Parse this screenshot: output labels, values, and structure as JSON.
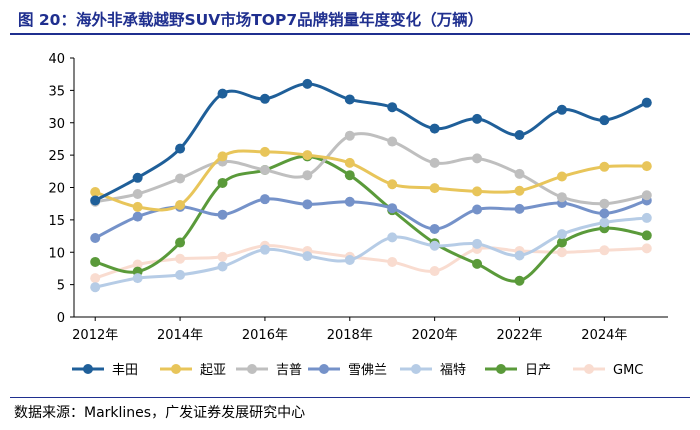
{
  "figure": {
    "title": "图 20：海外非承载越野SUV市场TOP7品牌销量年度变化（万辆）",
    "source": "数据来源：Marklines，广发证券发展研究中心"
  },
  "chart_data": {
    "type": "line",
    "title": "海外非承载越野SUV市场TOP7品牌销量年度变化（万辆）",
    "xlabel": "",
    "ylabel": "",
    "x": [
      2012,
      2013,
      2014,
      2015,
      2016,
      2017,
      2018,
      2019,
      2020,
      2021,
      2022,
      2023,
      2024,
      2025
    ],
    "x_tick_labels": [
      "2012年",
      "2014年",
      "2016年",
      "2018年",
      "2020年",
      "2022年",
      "2024年"
    ],
    "x_tick_values": [
      2012,
      2014,
      2016,
      2018,
      2020,
      2022,
      2024
    ],
    "ylim": [
      0,
      40
    ],
    "y_ticks": [
      0,
      5,
      10,
      15,
      20,
      25,
      30,
      35,
      40
    ],
    "grid": false,
    "legend_position": "bottom",
    "series": [
      {
        "name": "丰田",
        "color": "#1f5f99",
        "values": [
          18.0,
          21.5,
          26.0,
          34.5,
          33.7,
          36.0,
          33.6,
          32.4,
          29.1,
          30.6,
          28.1,
          32.0,
          30.4,
          33.1
        ]
      },
      {
        "name": "起亚",
        "color": "#e8c55a",
        "values": [
          19.3,
          17.0,
          17.3,
          24.8,
          25.5,
          25.0,
          23.8,
          20.5,
          19.9,
          19.4,
          19.5,
          21.7,
          23.2,
          23.3
        ]
      },
      {
        "name": "吉普",
        "color": "#bfbfbf",
        "values": [
          17.8,
          19.0,
          21.4,
          24.0,
          22.7,
          21.9,
          28.0,
          27.1,
          23.8,
          24.5,
          22.1,
          18.5,
          17.5,
          18.8
        ]
      },
      {
        "name": "雪佛兰",
        "color": "#7592c9",
        "values": [
          12.2,
          15.5,
          17.0,
          15.8,
          18.2,
          17.4,
          17.8,
          16.8,
          13.6,
          16.6,
          16.7,
          17.6,
          16.0,
          18.0
        ]
      },
      {
        "name": "福特",
        "color": "#b6cce6",
        "values": [
          4.6,
          6.0,
          6.5,
          7.8,
          10.4,
          9.4,
          8.8,
          12.3,
          11.0,
          11.3,
          9.5,
          12.8,
          14.6,
          15.3
        ]
      },
      {
        "name": "日产",
        "color": "#5a9a3a",
        "values": [
          8.5,
          7.0,
          11.5,
          20.7,
          22.7,
          24.8,
          21.9,
          16.5,
          11.4,
          8.2,
          5.6,
          11.5,
          13.7,
          12.6
        ]
      },
      {
        "name": "GMC",
        "color": "#f9dcd0",
        "values": [
          6.0,
          8.1,
          9.0,
          9.3,
          11.0,
          10.2,
          9.3,
          8.5,
          7.1,
          10.5,
          10.2,
          10.0,
          10.3,
          10.6
        ]
      }
    ]
  }
}
